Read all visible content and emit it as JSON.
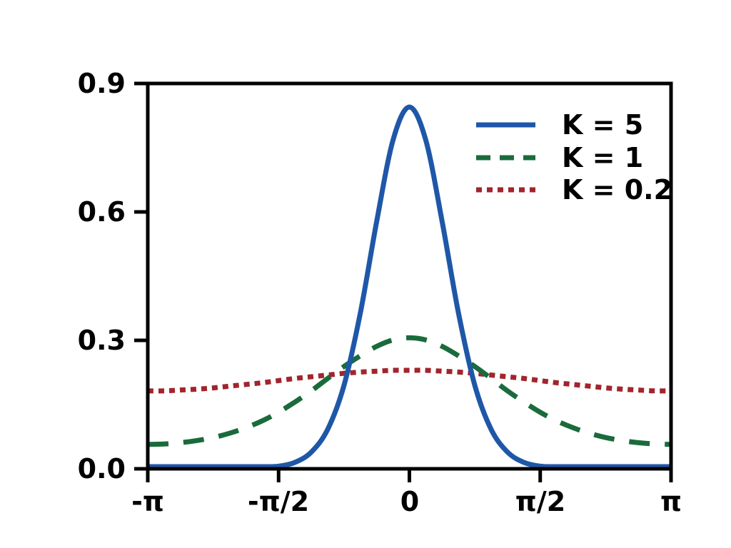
{
  "chart_data": {
    "type": "line",
    "title": "",
    "xlabel": "",
    "ylabel": "",
    "grid": false,
    "background": "#ffffff",
    "axis_color": "#000000",
    "xlim_pi": [
      -1,
      1
    ],
    "ylim": [
      0,
      0.9
    ],
    "x_unit": "radians (multiples of pi)",
    "x_ticks": [
      {
        "pos_pi": -1,
        "label": "-π"
      },
      {
        "pos_pi": -0.5,
        "label": "-π/2"
      },
      {
        "pos_pi": 0,
        "label": "0"
      },
      {
        "pos_pi": 0.5,
        "label": "π/2"
      },
      {
        "pos_pi": 1,
        "label": "π"
      }
    ],
    "y_ticks": [
      {
        "value": 0.0,
        "label": "0.0"
      },
      {
        "value": 0.3,
        "label": "0.3"
      },
      {
        "value": 0.6,
        "label": "0.6"
      },
      {
        "value": 0.9,
        "label": "0.9"
      }
    ],
    "legend": {
      "position": "upper-right",
      "frame": false
    },
    "x_pi": [
      -1,
      -0.9375,
      -0.875,
      -0.8125,
      -0.75,
      -0.6875,
      -0.625,
      -0.5625,
      -0.5,
      -0.4375,
      -0.375,
      -0.3125,
      -0.25,
      -0.1875,
      -0.125,
      -0.0625,
      0,
      0.0625,
      0.125,
      0.1875,
      0.25,
      0.3125,
      0.375,
      0.4375,
      0.5,
      0.5625,
      0.625,
      0.6875,
      0.75,
      0.8125,
      0.875,
      0.9375,
      1
    ],
    "series": [
      {
        "name": "K = 5",
        "color": "#1f57a8",
        "style": "solid",
        "linewidth": 7,
        "peak": 0.845,
        "values": [
          0.005,
          0.005,
          0.005,
          0.005,
          0.005,
          0.005,
          0.005,
          0.005,
          0.006,
          0.015,
          0.039,
          0.092,
          0.195,
          0.364,
          0.578,
          0.768,
          0.845,
          0.768,
          0.578,
          0.364,
          0.195,
          0.092,
          0.039,
          0.015,
          0.006,
          0.005,
          0.005,
          0.005,
          0.005,
          0.005,
          0.005,
          0.005,
          0.005
        ]
      },
      {
        "name": "K = 1",
        "color": "#1a6b3c",
        "style": "dashed",
        "linewidth": 7,
        "peak": 0.306,
        "values": [
          0.057,
          0.058,
          0.061,
          0.066,
          0.073,
          0.083,
          0.096,
          0.112,
          0.132,
          0.156,
          0.182,
          0.211,
          0.239,
          0.264,
          0.286,
          0.301,
          0.306,
          0.301,
          0.286,
          0.264,
          0.239,
          0.211,
          0.182,
          0.156,
          0.132,
          0.112,
          0.096,
          0.083,
          0.073,
          0.066,
          0.061,
          0.058,
          0.057
        ]
      },
      {
        "name": "K = 0.2",
        "color": "#a2242c",
        "style": "dotted",
        "linewidth": 7,
        "peak": 0.23,
        "values": [
          0.182,
          0.182,
          0.184,
          0.186,
          0.189,
          0.193,
          0.197,
          0.201,
          0.206,
          0.211,
          0.215,
          0.219,
          0.223,
          0.226,
          0.228,
          0.23,
          0.23,
          0.23,
          0.228,
          0.226,
          0.223,
          0.219,
          0.215,
          0.211,
          0.206,
          0.201,
          0.197,
          0.193,
          0.189,
          0.186,
          0.184,
          0.182,
          0.182
        ]
      }
    ]
  }
}
